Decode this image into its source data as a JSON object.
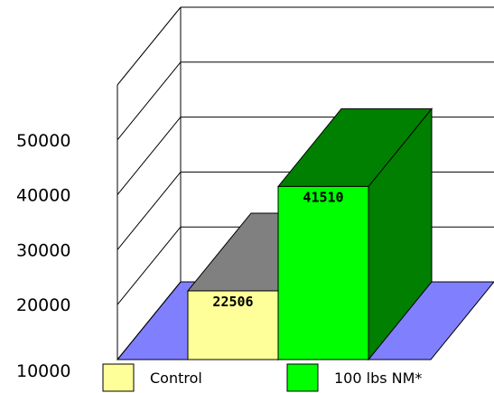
{
  "chart_data": {
    "type": "bar",
    "categories": [
      "Control",
      "100 lbs NM*"
    ],
    "values": [
      22506,
      41510
    ],
    "data_labels": [
      "22506",
      "41510"
    ],
    "y_ticks": [
      10000,
      20000,
      30000,
      40000,
      50000
    ],
    "ylim": [
      10000,
      60000
    ],
    "title": "",
    "xlabel": "",
    "ylabel": "",
    "legend": {
      "placement": "bottom",
      "entries": [
        {
          "label": "Control",
          "color": "#ffff99"
        },
        {
          "label": "100 lbs NM*",
          "color": "#00ff00"
        }
      ]
    },
    "bar_colors": [
      {
        "front": "#ffff99",
        "side": "#7f7f7f",
        "top": "#808080"
      },
      {
        "front": "#00ff00",
        "side": "#007f00",
        "top": "#008000"
      }
    ],
    "floor_color": "#8080ff",
    "grid": true
  }
}
